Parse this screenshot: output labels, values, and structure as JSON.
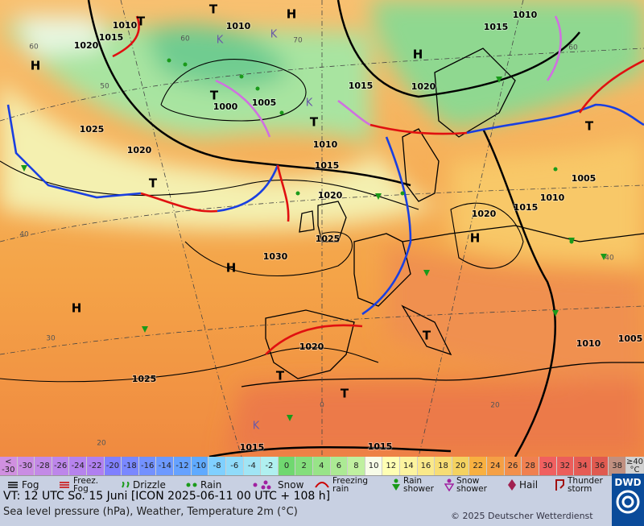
{
  "map": {
    "isobar_labels": [
      "1010",
      "1015",
      "1020",
      "1010",
      "1010",
      "1015",
      "1020",
      "1015",
      "1005",
      "1000",
      "1025",
      "1020",
      "1010",
      "1015",
      "1020",
      "1025",
      "1030",
      "1020",
      "1015",
      "1010",
      "1005",
      "1010",
      "1005",
      "1020",
      "1025",
      "1015",
      "1015"
    ],
    "pressure_centers": [
      "H",
      "H",
      "H",
      "H",
      "H",
      "H",
      "T",
      "T",
      "T",
      "T",
      "T",
      "T",
      "T",
      "T",
      "T",
      "K",
      "K",
      "K",
      "K"
    ],
    "grid_labels": [
      "60",
      "50",
      "40",
      "30",
      "20",
      "70",
      "60",
      "60",
      "40",
      "0",
      "20"
    ]
  },
  "temperature_scale": {
    "labels": [
      "<\n-30",
      "-30",
      "-28",
      "-26",
      "-24",
      "-22",
      "-20",
      "-18",
      "-16",
      "-14",
      "-12",
      "-10",
      "-8",
      "-6",
      "-4",
      "-2",
      "0",
      "2",
      "4",
      "6",
      "8",
      "10",
      "12",
      "14",
      "16",
      "18",
      "20",
      "22",
      "24",
      "26",
      "28",
      "30",
      "32",
      "34",
      "36",
      "38",
      "≥40\n°C"
    ]
  },
  "legend": {
    "items": [
      "Fog",
      "Freez.\nFog",
      "Drizzle",
      "Rain",
      "Snow",
      "Freezing\nrain",
      "Rain\nshower",
      "Snow\nshower",
      "Hail",
      "Thunder\nstorm"
    ]
  },
  "footer": {
    "valid_time": "VT: 12 UTC So.  15 Juni [ICON 2025-06-11  00 UTC + 108 h]",
    "subtitle": "Sea level pressure (hPa), Weather, Temperature 2m (°C)",
    "copyright": "© 2025 Deutscher Wetterdienst",
    "logo": "DWD"
  }
}
